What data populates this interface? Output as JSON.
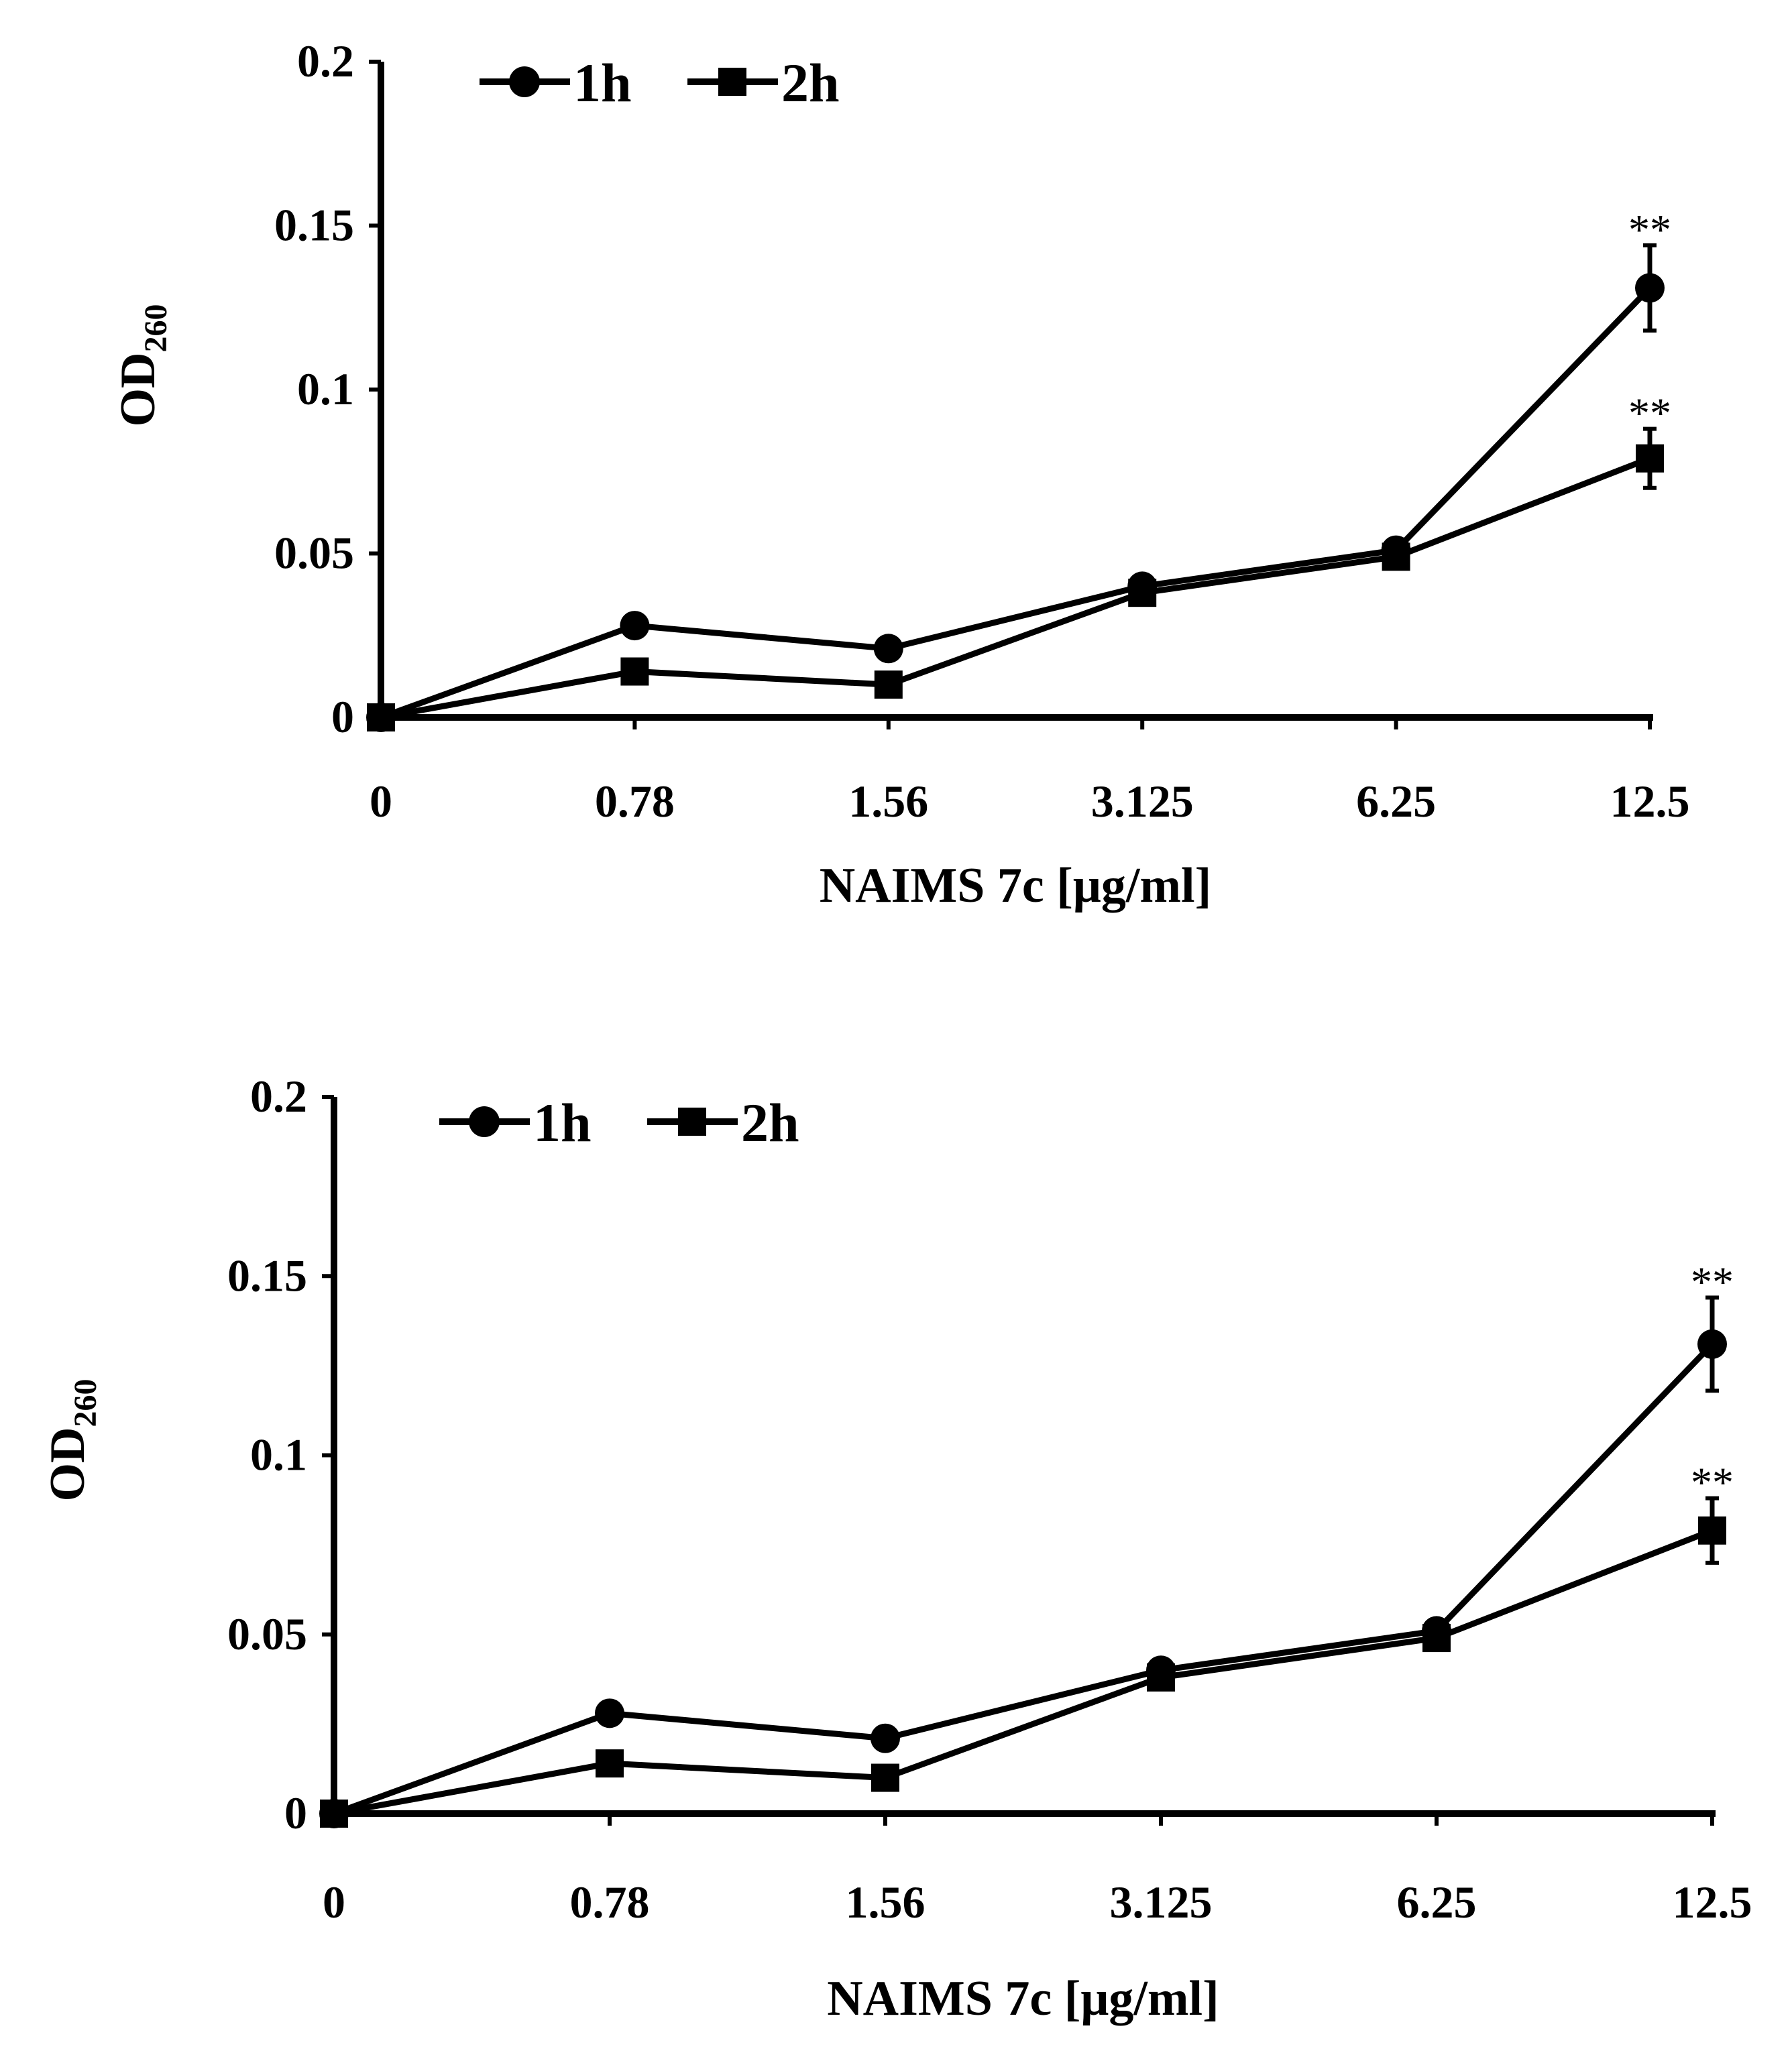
{
  "chart_data": [
    {
      "type": "line",
      "categories": [
        "0",
        "0.78",
        "1.56",
        "3.125",
        "6.25",
        "12.5"
      ],
      "series": [
        {
          "name": "1h",
          "marker": "circle",
          "values": [
            0,
            0.028,
            0.021,
            0.04,
            0.051,
            0.131
          ],
          "errors": [
            0,
            0.002,
            0.002,
            0.003,
            0.003,
            0.013
          ],
          "annotations": [
            "",
            "",
            "",
            "",
            "",
            "**"
          ]
        },
        {
          "name": "2h",
          "marker": "square",
          "values": [
            0,
            0.014,
            0.01,
            0.038,
            0.049,
            0.079
          ],
          "errors": [
            0,
            0.002,
            0.002,
            0.003,
            0.003,
            0.009
          ],
          "annotations": [
            "",
            "",
            "",
            "",
            "",
            "**"
          ]
        }
      ],
      "yticks": [
        "0",
        "0.05",
        "0.1",
        "0.15",
        "0.2"
      ],
      "ylim": [
        0,
        0.2
      ],
      "ylabel_main": "OD",
      "ylabel_sub": "260",
      "xlabel": "NAIMS 7c [μg/ml]",
      "legend_position": "top-left",
      "grid": false,
      "color": "#000000"
    },
    {
      "type": "line",
      "categories": [
        "0",
        "0.78",
        "1.56",
        "3.125",
        "6.25",
        "12.5"
      ],
      "series": [
        {
          "name": "1h",
          "marker": "circle",
          "values": [
            0,
            0.028,
            0.021,
            0.04,
            0.051,
            0.131
          ],
          "errors": [
            0,
            0.002,
            0.002,
            0.003,
            0.003,
            0.013
          ],
          "annotations": [
            "",
            "",
            "",
            "",
            "",
            "**"
          ]
        },
        {
          "name": "2h",
          "marker": "square",
          "values": [
            0,
            0.014,
            0.01,
            0.038,
            0.049,
            0.079
          ],
          "errors": [
            0,
            0.002,
            0.002,
            0.003,
            0.003,
            0.009
          ],
          "annotations": [
            "",
            "",
            "",
            "",
            "",
            "**"
          ]
        }
      ],
      "yticks": [
        "0",
        "0.05",
        "0.1",
        "0.15",
        "0.2"
      ],
      "ylim": [
        0,
        0.2
      ],
      "ylabel_main": "OD",
      "ylabel_sub": "260",
      "xlabel": "NAIMS 7c [μg/ml]",
      "legend_position": "top-left",
      "grid": false,
      "color": "#000000"
    }
  ]
}
